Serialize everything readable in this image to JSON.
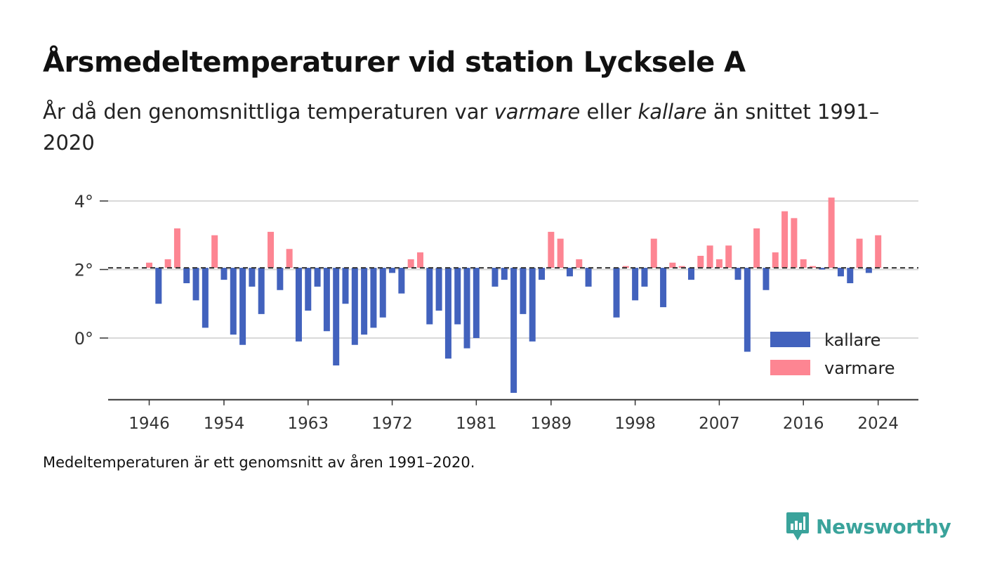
{
  "title": "Årsmedeltemperaturer vid station Lycksele A",
  "subtitle": {
    "before": "År då den genomsnittliga temperaturen var ",
    "em1": "varmare",
    "mid": " eller ",
    "em2": "kallare",
    "after": " än snittet 1991–2020"
  },
  "footnote": "Medeltemperaturen är ett genomsnitt av åren 1991–2020.",
  "brand": "Newsworthy",
  "colors": {
    "kallare": "#4262bd",
    "varmare": "#fd8592",
    "brand": "#3aa39b"
  },
  "chart_data": {
    "type": "bar",
    "baseline": 2.05,
    "ylim": [
      -1.8,
      4.5
    ],
    "yticks": [
      0,
      2,
      4
    ],
    "ytick_labels": [
      "0°",
      "2°",
      "4°"
    ],
    "xticks": [
      1946,
      1954,
      1963,
      1972,
      1981,
      1989,
      1998,
      2007,
      2016,
      2024
    ],
    "legend": [
      {
        "name": "kallare",
        "color": "#4262bd"
      },
      {
        "name": "varmare",
        "color": "#fd8592"
      }
    ],
    "legend_position": "bottom-right",
    "years": [
      1946,
      1947,
      1948,
      1949,
      1950,
      1951,
      1952,
      1953,
      1954,
      1955,
      1956,
      1957,
      1958,
      1959,
      1960,
      1961,
      1962,
      1963,
      1964,
      1965,
      1966,
      1967,
      1968,
      1969,
      1970,
      1971,
      1972,
      1973,
      1974,
      1975,
      1976,
      1977,
      1978,
      1979,
      1980,
      1981,
      1982,
      1983,
      1984,
      1985,
      1986,
      1987,
      1988,
      1989,
      1990,
      1991,
      1992,
      1993,
      1994,
      1995,
      1996,
      1997,
      1998,
      1999,
      2000,
      2001,
      2002,
      2003,
      2004,
      2005,
      2006,
      2007,
      2008,
      2009,
      2010,
      2011,
      2012,
      2013,
      2014,
      2015,
      2016,
      2017,
      2018,
      2019,
      2020,
      2021,
      2022,
      2023,
      2024
    ],
    "values": [
      2.2,
      1.0,
      2.3,
      3.2,
      1.6,
      1.1,
      0.3,
      3.0,
      1.7,
      0.1,
      -0.2,
      1.5,
      0.7,
      3.1,
      1.4,
      2.6,
      -0.1,
      0.8,
      1.5,
      0.2,
      -0.8,
      1.0,
      -0.2,
      0.1,
      0.3,
      0.6,
      1.9,
      1.3,
      2.3,
      2.5,
      0.4,
      0.8,
      -0.6,
      0.4,
      -0.3,
      0.0,
      null,
      1.5,
      1.7,
      -1.6,
      0.7,
      -0.1,
      1.7,
      3.1,
      2.9,
      1.8,
      2.3,
      1.5,
      null,
      null,
      0.6,
      2.1,
      1.1,
      1.5,
      2.9,
      0.9,
      2.2,
      2.1,
      1.7,
      2.4,
      2.7,
      2.3,
      2.7,
      1.7,
      -0.4,
      3.2,
      1.4,
      2.5,
      3.7,
      3.5,
      2.3,
      2.1,
      2.0,
      4.1,
      1.8,
      1.6,
      2.9,
      1.9,
      3.0
    ]
  }
}
